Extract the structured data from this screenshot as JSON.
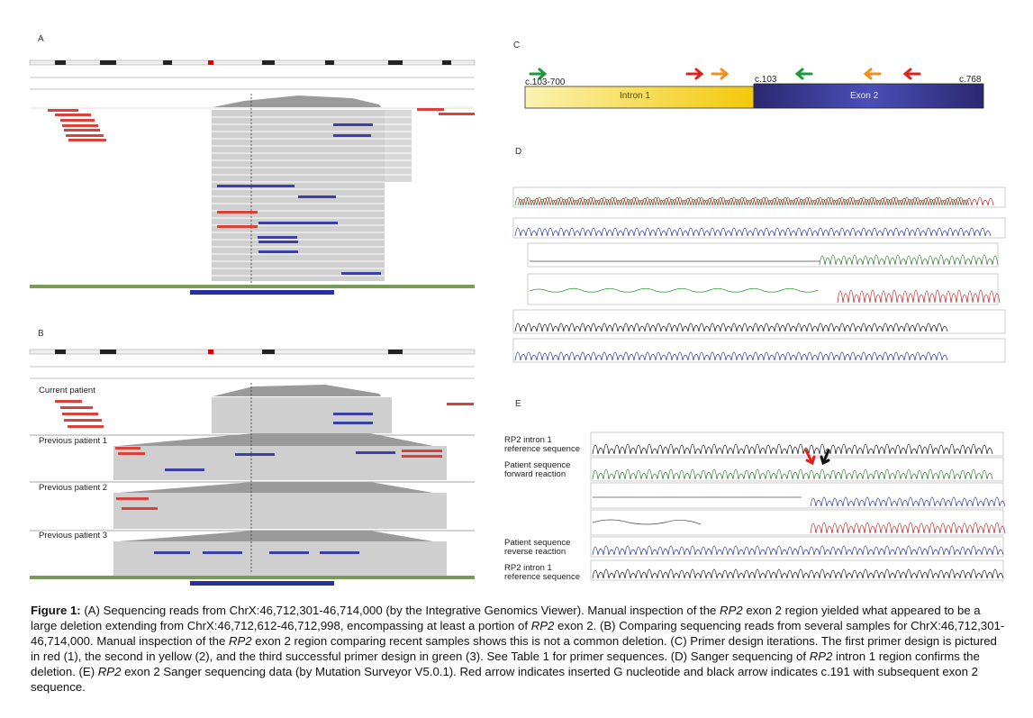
{
  "panels": {
    "a": {
      "letter": "A"
    },
    "b": {
      "letter": "B",
      "samples": [
        "Current patient",
        "Previous patient 1",
        "Previous patient 2",
        "Previous patient 3"
      ]
    },
    "c": {
      "letter": "C",
      "intron_label": "Intron 1",
      "exon_label": "Exon 2",
      "pos_start": "c.103-700",
      "pos_mid": "c.103",
      "pos_end": "c.768"
    },
    "d": {
      "letter": "D"
    },
    "e": {
      "letter": "E",
      "tracks": [
        {
          "line1": "RP2 intron 1",
          "line2": "reference sequence"
        },
        {
          "line1": "Patient sequence",
          "line2": "forward reaction"
        },
        {
          "line1": "Patient sequence",
          "line2": "reverse reaction"
        },
        {
          "line1": "RP2 intron 1",
          "line2": "reference sequence"
        }
      ]
    }
  },
  "caption": {
    "label": "Figure 1:",
    "p1": " (A) Sequencing reads from ChrX:46,712,301-46,714,000 (by the Integrative Genomics Viewer). Manual inspection of the ",
    "g1": "RP2",
    "p2": " exon 2 region yielded what appeared to be a large deletion extending from ChrX:46,712,612-46,712,998, encompassing at least a portion of ",
    "g2": "RP2",
    "p3": " exon 2. (B) Comparing sequencing reads from several samples for ChrX:46,712,301-46,714,000. Manual inspection of the ",
    "g3": "RP2",
    "p4": " exon 2 region comparing recent samples shows this is not a common deletion. (C) Primer design iterations. The first primer design is pictured in red (1), the second in yellow (2), and the third successful primer design in green (3). See Table 1 for primer sequences. (D) Sanger sequencing of ",
    "g4": "RP2",
    "p5": " intron 1 region confirms the deletion. (E) ",
    "g5": "RP2",
    "p6": " exon 2 Sanger sequencing data (by Mutation Surveyor V5.0.1). Red arrow indicates inserted G nucleotide and black arrow indicates c.191 with subsequent exon 2 sequence."
  },
  "colors": {
    "intron": "#f5d020",
    "exon": "#2d2a7e",
    "red_read": "#d9413a",
    "blue_read": "#3c3fa8",
    "gray_read": "#c8c8c8",
    "green_primer": "#1a9a3a",
    "red_primer": "#e0201a",
    "orange_primer": "#f0901a"
  }
}
